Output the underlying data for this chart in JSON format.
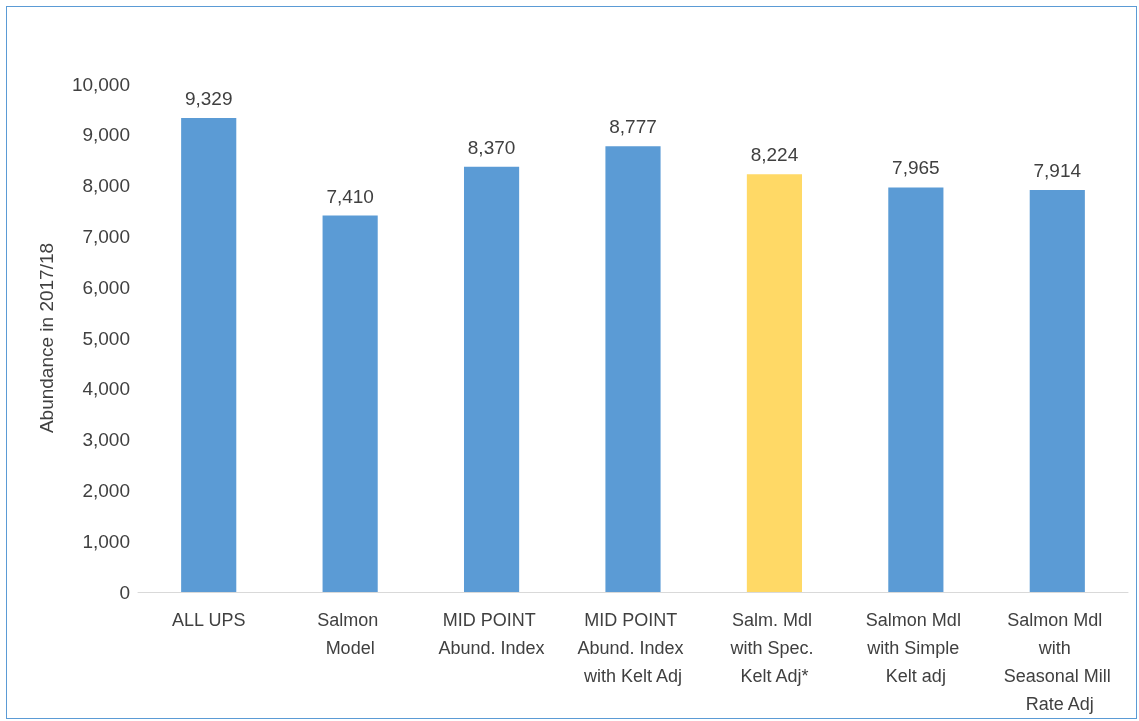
{
  "chart_data": {
    "type": "bar",
    "ylabel": "Abundance in 2017/18",
    "categories": [
      "ALL UPS",
      "Salmon Model",
      "MID POINT Abund. Index",
      "MID POINT Abund. Index with Kelt Adj",
      "Salm. Mdl with Spec. Kelt Adj*",
      "Salmon Mdl with Simple Kelt adj",
      "Salmon Mdl with Seasonal Mill Rate Adj"
    ],
    "values": [
      9329,
      7410,
      8370,
      8777,
      8224,
      7965,
      7914
    ],
    "value_labels": [
      "9,329",
      "7,410",
      "8,370",
      "8,777",
      "8,224",
      "7,965",
      "7,914"
    ],
    "colors": [
      "#5b9bd5",
      "#5b9bd5",
      "#5b9bd5",
      "#5b9bd5",
      "#ffd966",
      "#5b9bd5",
      "#5b9bd5"
    ],
    "ylim": [
      0,
      10000
    ],
    "yticks": [
      0,
      {
        "value": 1000,
        "label": "1,000"
      },
      {
        "value": 2000,
        "label": "2,000"
      },
      {
        "value": 3000,
        "label": "3,000"
      },
      {
        "value": 4000,
        "label": "4,000"
      },
      {
        "value": 5000,
        "label": "5,000"
      },
      {
        "value": 6000,
        "label": "6,000"
      },
      {
        "value": 7000,
        "label": "7,000"
      },
      {
        "value": 8000,
        "label": "8,000"
      },
      {
        "value": 9000,
        "label": "9,000"
      },
      {
        "value": 10000,
        "label": "10,000"
      }
    ],
    "grid": false
  }
}
